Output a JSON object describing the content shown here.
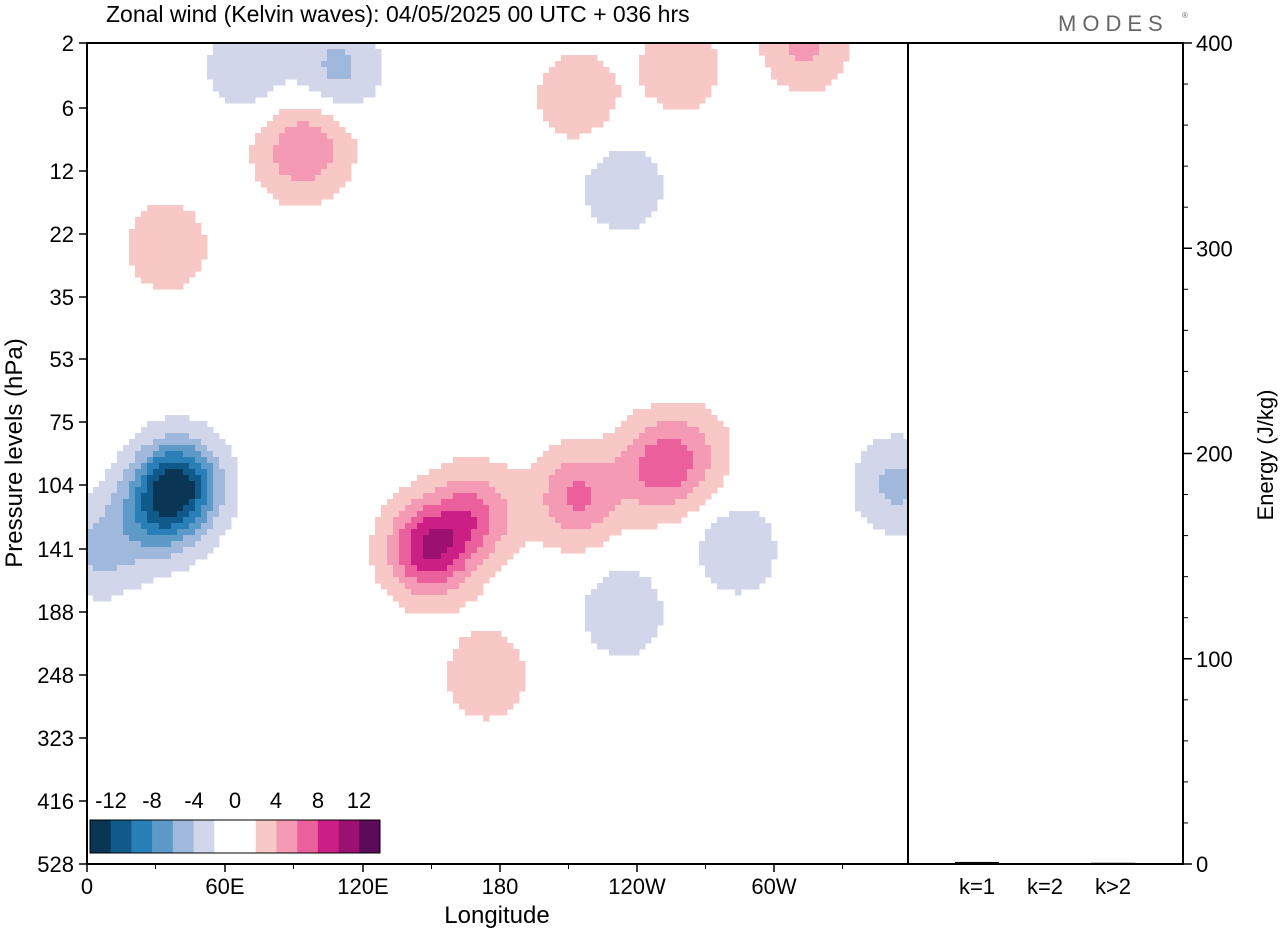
{
  "header": {
    "title": "Zonal wind (Kelvin waves):  04/05/2025  00 UTC  + 036 hrs",
    "brand": "MODES",
    "brand_mark": "®"
  },
  "colors": {
    "neg": [
      "#0b3555",
      "#0f5a8a",
      "#2a7fb8",
      "#5e9ac8",
      "#9fb8db",
      "#d2d6ea"
    ],
    "pos": [
      "#f8c8c6",
      "#f59ab5",
      "#ec5f9d",
      "#cc1f86",
      "#9c1072",
      "#5c0a5a"
    ],
    "zero": "#ffffff",
    "frame": "#000000"
  },
  "chart_data": [
    {
      "type": "heatmap",
      "title": "Zonal wind (Kelvin waves):  04/05/2025  00 UTC  + 036 hrs",
      "xlabel": "Longitude",
      "ylabel": "Pressure levels (hPa)",
      "x_ticks": [
        "0",
        "60E",
        "120E",
        "180",
        "120W",
        "60W"
      ],
      "y_ticks": [
        "2",
        "6",
        "12",
        "22",
        "35",
        "53",
        "75",
        "104",
        "141",
        "188",
        "248",
        "323",
        "416",
        "528"
      ],
      "y_scale": "pressure levels (descending)",
      "legend": {
        "position": "bottom-left",
        "labels": [
          "-12",
          "-8",
          "-4",
          "0",
          "4",
          "8",
          "12"
        ],
        "levels": [
          -14,
          -12,
          -10,
          -8,
          -6,
          -4,
          -2,
          2,
          4,
          6,
          8,
          10,
          12,
          14
        ]
      },
      "blobs": [
        {
          "lon": 40,
          "lev": 104,
          "val": -12
        },
        {
          "lon": 30,
          "lev": 120,
          "val": -6
        },
        {
          "lon": 5,
          "lev": 141,
          "val": -4
        },
        {
          "lon": 150,
          "lev": 141,
          "val": 10
        },
        {
          "lon": 170,
          "lev": 120,
          "val": 6
        },
        {
          "lon": 175,
          "lev": 248,
          "val": 3
        },
        {
          "lon": 215,
          "lev": 110,
          "val": 6
        },
        {
          "lon": 250,
          "lev": 95,
          "val": 6
        },
        {
          "lon": 265,
          "lev": 88,
          "val": 3
        },
        {
          "lon": 90,
          "lev": 10,
          "val": 3
        },
        {
          "lon": 100,
          "lev": 9,
          "val": 3
        },
        {
          "lon": 215,
          "lev": 5,
          "val": 3
        },
        {
          "lon": 260,
          "lev": 3,
          "val": 3
        },
        {
          "lon": 35,
          "lev": 24,
          "val": 3
        },
        {
          "lon": 70,
          "lev": 3,
          "val": -3
        },
        {
          "lon": 110,
          "lev": 3,
          "val": -4
        },
        {
          "lon": 235,
          "lev": 14,
          "val": -3
        },
        {
          "lon": 235,
          "lev": 188,
          "val": -3
        },
        {
          "lon": 285,
          "lev": 141,
          "val": -3
        },
        {
          "lon": 355,
          "lev": 104,
          "val": -4
        },
        {
          "lon": 315,
          "lev": 2,
          "val": 4
        }
      ]
    },
    {
      "type": "bar",
      "categories": [
        "k=1",
        "k=2",
        "k>2"
      ],
      "values": [
        1,
        0.3,
        0.6
      ],
      "ylabel": "Energy (J/kg)",
      "ylim": [
        0,
        400
      ],
      "y_ticks": [
        "0",
        "100",
        "200",
        "300",
        "400"
      ]
    }
  ]
}
